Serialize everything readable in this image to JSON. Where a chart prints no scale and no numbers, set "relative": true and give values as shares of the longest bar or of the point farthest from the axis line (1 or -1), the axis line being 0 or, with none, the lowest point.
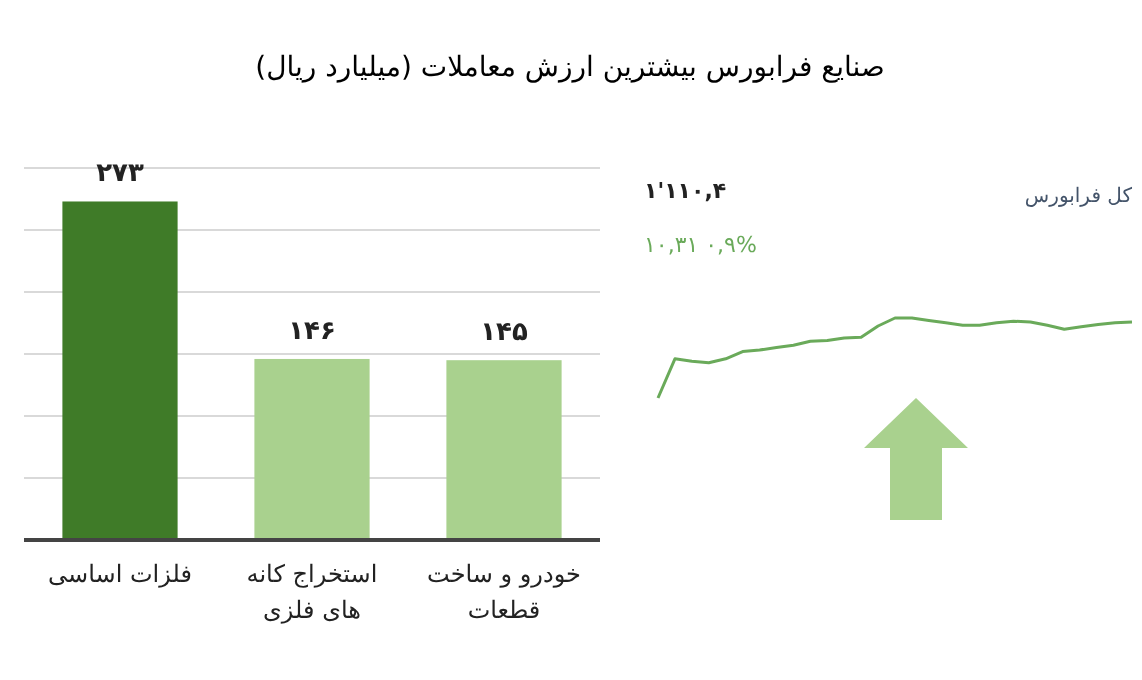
{
  "chart_data": [
    {
      "type": "bar",
      "title": "صنایع فرابورس بیشترین ارزش معاملات  (میلیارد ریال)",
      "categories": [
        "فلزات اساسی",
        "استخراج کانه های فلزی",
        "خودرو و ساخت قطعات"
      ],
      "values": [
        273,
        146,
        145
      ],
      "colors": [
        "#3f7b28",
        "#a9d18e",
        "#a9d18e"
      ],
      "value_labels": [
        "۲۷۳",
        "۱۴۶",
        "۱۴۵"
      ],
      "ylim": [
        0,
        300
      ],
      "yticks": [
        {
          "value": 0,
          "label": null
        },
        {
          "value": 50,
          "label": null
        },
        {
          "value": 100,
          "label": null
        },
        {
          "value": 150,
          "label": null
        },
        {
          "value": 200,
          "label": null
        },
        {
          "value": 250,
          "label": null
        },
        {
          "value": 300,
          "label": null
        }
      ],
      "grid": "y",
      "tick_labels": "x"
    },
    {
      "type": "line",
      "title": "کل فرابورس",
      "annotations": [
        "۱'۱۱۰,۴",
        "۱۰,۳۱  ۰,۹%"
      ],
      "categories": [
        null,
        null,
        null,
        null,
        null,
        null,
        null,
        null,
        null,
        null,
        null,
        null,
        null,
        null,
        null,
        null,
        null,
        null,
        null,
        null,
        null,
        null,
        null,
        null,
        null,
        null,
        null,
        null,
        null
      ],
      "values": [
        0,
        0.49,
        0.46,
        0.44,
        0.49,
        0.58,
        0.6,
        0.63,
        0.66,
        0.71,
        0.72,
        0.75,
        0.76,
        0.9,
        1,
        1,
        0.97,
        0.94,
        0.91,
        0.91,
        0.94,
        0.96,
        0.95,
        0.91,
        0.86,
        0.89,
        0.92,
        0.94,
        0.95
      ],
      "color": "#6aaa5a",
      "relative": true
    }
  ]
}
